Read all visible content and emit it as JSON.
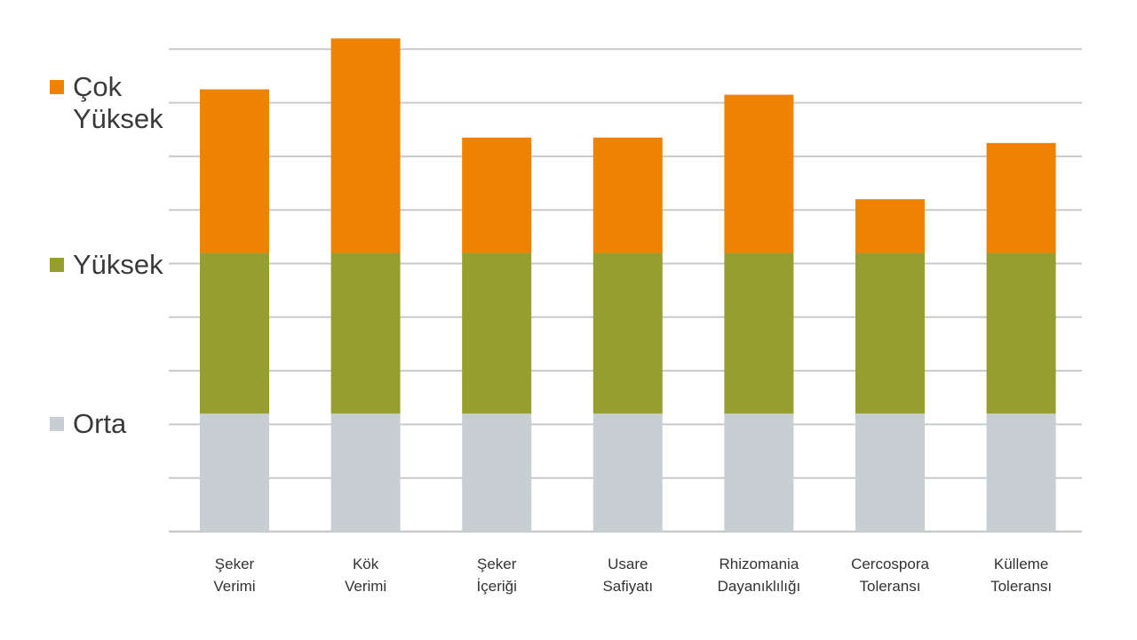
{
  "chart_data": {
    "type": "bar",
    "stacked": true,
    "categories": [
      "Şeker Verimi",
      "Kök Verimi",
      "Şeker İçeriği",
      "Usare Safiyatı",
      "Rhizomania Dayanıklılığı",
      "Cercospora Toleransı",
      "Külleme Toleransı"
    ],
    "category_lines": [
      [
        "Şeker",
        "Verimi"
      ],
      [
        "Kök",
        "Verimi"
      ],
      [
        "Şeker",
        "İçeriği"
      ],
      [
        "Usare",
        "Safiyatı"
      ],
      [
        "Rhizomania",
        "Dayanıklılığı"
      ],
      [
        "Cercospora",
        "Toleransı"
      ],
      [
        "Külleme",
        "Toleransı"
      ]
    ],
    "series": [
      {
        "name": "Orta",
        "color": "#c8cfd3",
        "values": [
          2.2,
          2.2,
          2.2,
          2.2,
          2.2,
          2.2,
          2.2
        ]
      },
      {
        "name": "Yüksek",
        "color": "#969e2e",
        "values": [
          3.0,
          3.0,
          3.0,
          3.0,
          3.0,
          3.0,
          3.0
        ]
      },
      {
        "name": "Çok Yüksek",
        "color": "#ef8200",
        "values": [
          3.05,
          4.0,
          2.15,
          2.15,
          2.95,
          1.0,
          2.05
        ]
      }
    ],
    "ylim": [
      0,
      9.2
    ],
    "grid": true,
    "gridlines": [
      1,
      2,
      3,
      4,
      5,
      6,
      7,
      8,
      9
    ],
    "legend_placement": "left"
  },
  "legend": [
    {
      "lines": [
        "Çok",
        "Yüksek"
      ],
      "color": "#ef8200"
    },
    {
      "lines": [
        "Yüksek"
      ],
      "color": "#969e2e"
    },
    {
      "lines": [
        "Orta"
      ],
      "color": "#c8cfd3"
    }
  ]
}
